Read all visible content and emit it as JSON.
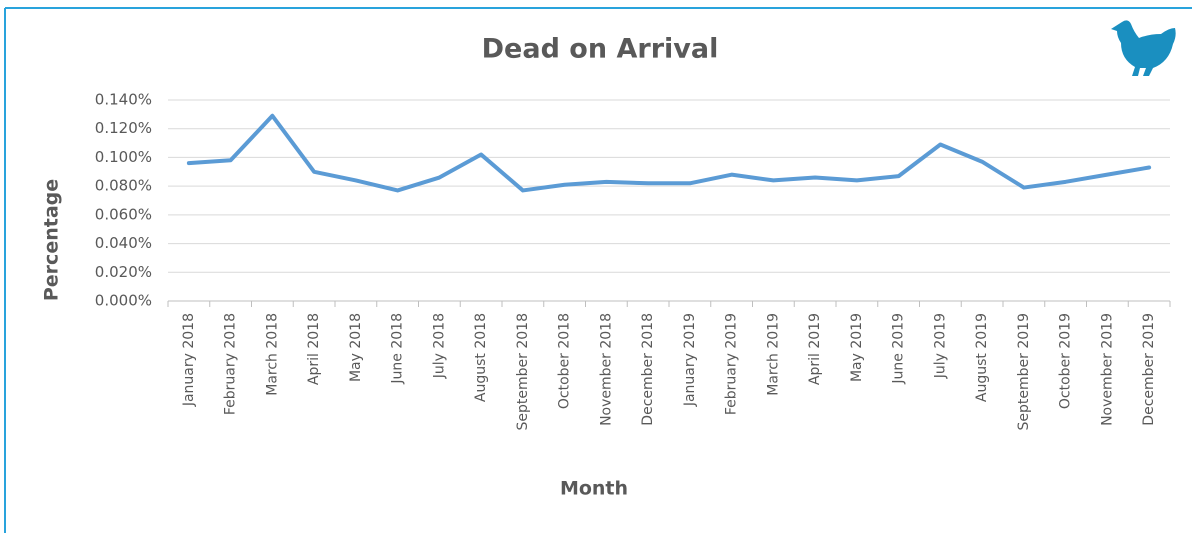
{
  "chart_data": {
    "type": "line",
    "title": "Dead on Arrival",
    "x_label": "Month",
    "y_label": "Percentage",
    "categories": [
      "January 2018",
      "February 2018",
      "March 2018",
      "April 2018",
      "May 2018",
      "June 2018",
      "July 2018",
      "August 2018",
      "September 2018",
      "October 2018",
      "November 2018",
      "December 2018",
      "January 2019",
      "February 2019",
      "March 2019",
      "April 2019",
      "May 2019",
      "June 2019",
      "July 2019",
      "August 2019",
      "September 2019",
      "October 2019",
      "November 2019",
      "December 2019"
    ],
    "series": [
      {
        "name": "Dead on Arrival",
        "color": "#5b9bd5",
        "values": [
          0.096,
          0.098,
          0.129,
          0.09,
          0.084,
          0.077,
          0.086,
          0.102,
          0.077,
          0.081,
          0.083,
          0.082,
          0.082,
          0.088,
          0.084,
          0.086,
          0.084,
          0.087,
          0.109,
          0.097,
          0.079,
          0.083,
          0.088,
          0.093
        ]
      }
    ],
    "ylim": [
      0,
      0.14
    ],
    "yticks": [
      {
        "value": 0,
        "label": "0.000%"
      },
      {
        "value": 0.02,
        "label": "0.020%"
      },
      {
        "value": 0.04,
        "label": "0.040%"
      },
      {
        "value": 0.06,
        "label": "0.060%"
      },
      {
        "value": 0.08,
        "label": "0.080%"
      },
      {
        "value": 0.1,
        "label": "0.100%"
      },
      {
        "value": 0.12,
        "label": "0.120%"
      },
      {
        "value": 0.14,
        "label": "0.140%"
      }
    ],
    "grid": true,
    "legend": false
  }
}
